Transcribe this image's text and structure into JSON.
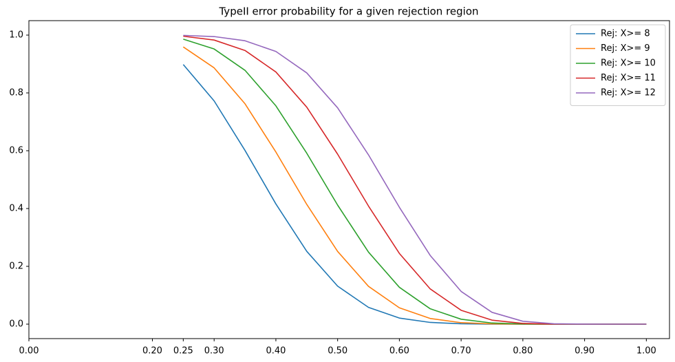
{
  "chart_data": {
    "type": "line",
    "title": "TypeII error probability for a given rejection region",
    "x": [
      0.25,
      0.3,
      0.35,
      0.4,
      0.45,
      0.5,
      0.55,
      0.6,
      0.65,
      0.7,
      0.75,
      0.8,
      0.85,
      0.9,
      0.95,
      1.0
    ],
    "series": [
      {
        "name": "Rej: X>= 8",
        "color": "#1f77b4",
        "values": [
          0.8982,
          0.7723,
          0.601,
          0.4159,
          0.252,
          0.1316,
          0.058,
          0.021,
          0.006,
          0.0013,
          0.0002,
          0,
          0,
          0,
          0,
          0
        ]
      },
      {
        "name": "Rej: X>= 9",
        "color": "#ff7f0e",
        "values": [
          0.9591,
          0.8867,
          0.7624,
          0.5956,
          0.4143,
          0.2517,
          0.1308,
          0.0565,
          0.0196,
          0.0051,
          0.0009,
          0.0001,
          0,
          0,
          0,
          0
        ]
      },
      {
        "name": "Rej: X>= 10",
        "color": "#2ca02c",
        "values": [
          0.9861,
          0.952,
          0.8782,
          0.7553,
          0.5914,
          0.4119,
          0.2493,
          0.1275,
          0.0532,
          0.0171,
          0.0039,
          0.0006,
          0.0001,
          0,
          0,
          0
        ]
      },
      {
        "name": "Rej: X>= 11",
        "color": "#d62728",
        "values": [
          0.9961,
          0.9829,
          0.9468,
          0.8725,
          0.7507,
          0.5881,
          0.4086,
          0.2447,
          0.1218,
          0.048,
          0.0139,
          0.0026,
          0.0002,
          0,
          0,
          0
        ]
      },
      {
        "name": "Rej: X>= 12",
        "color": "#9467bd",
        "values": [
          0.9991,
          0.9949,
          0.9804,
          0.9435,
          0.8692,
          0.7483,
          0.5857,
          0.4044,
          0.2376,
          0.1133,
          0.0409,
          0.01,
          0.0013,
          0.0001,
          0,
          0
        ]
      }
    ],
    "xlim": [
      0,
      1.0375
    ],
    "ylim": [
      -0.05,
      1.05
    ],
    "xticks": [
      {
        "value": 0,
        "label": "0.00"
      },
      {
        "value": 0.2,
        "label": "0.20"
      },
      {
        "value": 0.25,
        "label": "0.25"
      },
      {
        "value": 0.3,
        "label": "0.30"
      },
      {
        "value": 0.4,
        "label": "0.40"
      },
      {
        "value": 0.5,
        "label": "0.50"
      },
      {
        "value": 0.6,
        "label": "0.60"
      },
      {
        "value": 0.7,
        "label": "0.70"
      },
      {
        "value": 0.8,
        "label": "0.80"
      },
      {
        "value": 0.9,
        "label": "0.90"
      },
      {
        "value": 1,
        "label": "1.00"
      }
    ],
    "yticks": [
      {
        "value": 0,
        "label": "0.0"
      },
      {
        "value": 0.2,
        "label": "0.2"
      },
      {
        "value": 0.4,
        "label": "0.4"
      },
      {
        "value": 0.6,
        "label": "0.6"
      },
      {
        "value": 0.8,
        "label": "0.8"
      },
      {
        "value": 1,
        "label": "1.0"
      }
    ],
    "legend": "upper right",
    "grid": false
  }
}
